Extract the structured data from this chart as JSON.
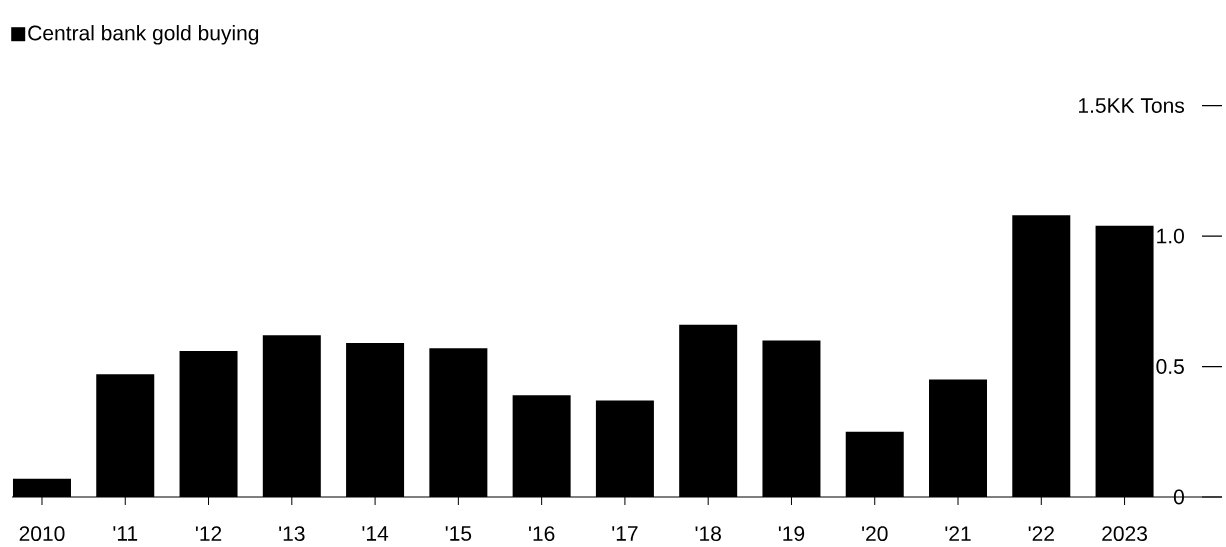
{
  "chart_data": {
    "type": "bar",
    "categories": [
      "2010",
      "'11",
      "'12",
      "'13",
      "'14",
      "'15",
      "'16",
      "'17",
      "'18",
      "'19",
      "'20",
      "'21",
      "'22",
      "2023"
    ],
    "series": [
      {
        "name": "Central bank gold buying",
        "color": "#000000",
        "values": [
          0.07,
          0.47,
          0.56,
          0.62,
          0.59,
          0.57,
          0.39,
          0.37,
          0.66,
          0.6,
          0.25,
          0.45,
          1.08,
          1.04
        ]
      }
    ],
    "ylim": [
      0,
      1.5
    ],
    "yticks": [
      0,
      0.5,
      {
        "value": 1,
        "label": "1.0"
      },
      {
        "value": 1.5,
        "label": "1.5KK Tons"
      }
    ],
    "legend": "top left"
  }
}
